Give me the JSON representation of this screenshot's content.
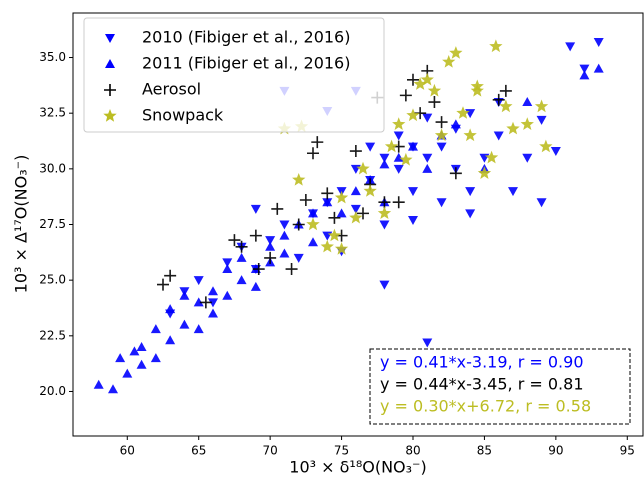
{
  "chart_data": {
    "type": "scatter",
    "x_label": "10³ × δ¹⁸O(NO₃⁻)",
    "y_label": "10³ × Δ¹⁷O(NO₃⁻)",
    "xlim": [
      56.2,
      96.1
    ],
    "ylim": [
      18,
      37
    ],
    "xticks": [
      60,
      65,
      70,
      75,
      80,
      85,
      90,
      95
    ],
    "yticks": [
      {
        "value": 20,
        "label": "20.0"
      },
      22.5,
      {
        "value": 25,
        "label": "25.0"
      },
      27.5,
      {
        "value": 30,
        "label": "30.0"
      },
      32.5,
      {
        "value": 35,
        "label": "35.0"
      }
    ],
    "legend": "upper left",
    "series": [
      {
        "name": "2010 (Fibiger et al., 2016)",
        "color": "#0000ff",
        "marker": "v",
        "x": [
          63,
          64,
          65,
          66,
          67,
          68,
          69,
          70,
          71,
          72,
          73,
          74,
          74,
          75,
          76,
          76,
          77,
          78,
          78,
          79,
          79,
          80,
          80,
          81,
          81,
          81,
          82,
          82,
          83,
          83,
          84,
          84,
          85,
          86,
          86,
          87,
          88,
          89,
          90,
          91,
          92,
          93,
          71,
          74,
          76,
          69,
          75,
          78,
          84,
          89,
          80,
          77
        ],
        "values": [
          23.5,
          24.5,
          25,
          24,
          25.8,
          26.5,
          25.5,
          26.8,
          27.5,
          26,
          28,
          28.5,
          27,
          29,
          28.2,
          30,
          29.5,
          27.5,
          30.5,
          30,
          31.5,
          29,
          31,
          30.5,
          22.2,
          32.3,
          31,
          28.5,
          30,
          31.8,
          29,
          32.5,
          30.5,
          31.5,
          33,
          29,
          30.5,
          28.5,
          30.8,
          35.5,
          34.5,
          35.7,
          33.5,
          32.6,
          33.5,
          28.2,
          26.3,
          24.8,
          28,
          32.2,
          27.7,
          31
        ]
      },
      {
        "name": "2011 (Fibiger et al., 2016)",
        "color": "#0000ff",
        "marker": "^",
        "x": [
          58,
          59,
          60,
          61,
          61,
          62,
          62,
          63,
          63,
          64,
          64,
          65,
          65,
          66,
          66,
          67,
          67,
          68,
          68,
          69,
          69,
          70,
          70,
          71,
          71,
          72,
          73,
          73,
          74,
          75,
          76,
          77,
          78,
          78,
          79,
          80,
          81,
          82,
          83,
          85,
          88,
          92,
          93,
          59.5,
          60.5
        ],
        "values": [
          20.3,
          20.1,
          20.8,
          21.2,
          22,
          21.5,
          22.8,
          22.3,
          23.7,
          23,
          24.3,
          22.8,
          24,
          24.5,
          23.5,
          25.5,
          24.3,
          25,
          26,
          25.5,
          24.7,
          26.5,
          25.8,
          27,
          26.2,
          27.5,
          28,
          26.7,
          28.5,
          28,
          29,
          29.5,
          28.5,
          30.2,
          30.5,
          31,
          30,
          31.5,
          32,
          30,
          33,
          34.2,
          34.5,
          21.5,
          21.8
        ]
      },
      {
        "name": "Aerosol",
        "color": "#000000",
        "marker": "+",
        "x": [
          62.5,
          63,
          65.5,
          67.5,
          68,
          69,
          69.2,
          70,
          70.5,
          71.5,
          72,
          72.5,
          73,
          73.3,
          74,
          74.5,
          75,
          76,
          76.5,
          77,
          77.5,
          78,
          79,
          79.5,
          80,
          80.5,
          81,
          81.5,
          82,
          83,
          86,
          86.5,
          79
        ],
        "values": [
          24.8,
          25.2,
          24,
          26.8,
          26.5,
          27,
          25.5,
          26,
          28.2,
          25.5,
          27.5,
          28.6,
          30.7,
          31.2,
          28.9,
          27.8,
          27,
          30.8,
          28,
          29.3,
          33.2,
          28.5,
          31,
          33.3,
          34,
          32.5,
          34.4,
          33,
          32.1,
          29.8,
          33.1,
          33.5,
          28.5
        ]
      },
      {
        "name": "Snowpack",
        "color": "#bcbd22",
        "marker": "*",
        "x": [
          72,
          71,
          72.2,
          73,
          74,
          74.5,
          75,
          75,
          76,
          76.5,
          77,
          78,
          78.5,
          79,
          79.5,
          80,
          80.5,
          81,
          81.5,
          82,
          82.5,
          83,
          83.5,
          84,
          84.5,
          85,
          85.5,
          85.8,
          86.5,
          87,
          88,
          89,
          89.3,
          84.5
        ],
        "values": [
          29.5,
          31.8,
          31.9,
          27.5,
          26.5,
          27,
          26.4,
          28.7,
          27.8,
          30,
          29,
          28,
          31,
          32,
          30.4,
          32.4,
          33.8,
          34,
          33.5,
          31.5,
          34.8,
          35.2,
          32.5,
          31.5,
          33.7,
          29.8,
          30.5,
          35.5,
          32.8,
          31.8,
          32,
          32.8,
          31,
          33.5
        ]
      }
    ],
    "annotations": [
      {
        "text": "y = 0.41*x-3.19, r = 0.90",
        "color": "#0000ff"
      },
      {
        "text": "y = 0.44*x-3.45, r = 0.81",
        "color": "#000000"
      },
      {
        "text": "y = 0.30*x+6.72, r = 0.58",
        "color": "#bcbd22"
      }
    ]
  }
}
